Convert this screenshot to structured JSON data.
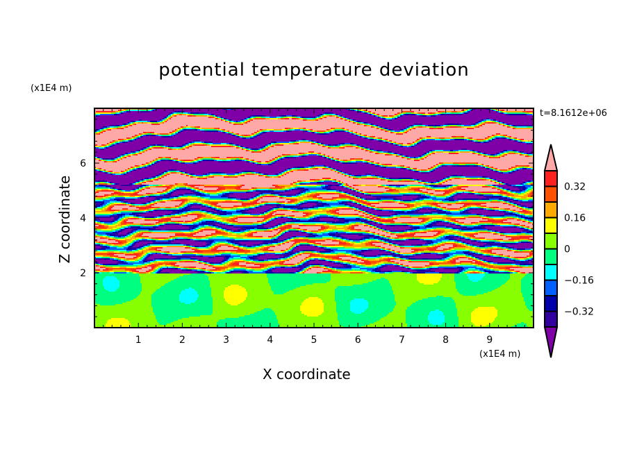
{
  "chart_data": {
    "type": "heatmap",
    "title": "potential temperature deviation",
    "xlabel": "X coordinate",
    "ylabel": "Z coordinate",
    "x_unit": "(x1E4 m)",
    "y_unit": "(x1E4 m)",
    "time_label": "t=8.1612e+06",
    "xlim": [
      0,
      10
    ],
    "ylim": [
      0,
      8
    ],
    "x_ticks": [
      1,
      2,
      3,
      4,
      5,
      6,
      7,
      8,
      9
    ],
    "y_ticks": [
      2,
      4,
      6
    ],
    "levels": [
      -0.4,
      -0.32,
      -0.24,
      -0.16,
      -0.08,
      0,
      0.08,
      0.16,
      0.24,
      0.32,
      0.4
    ],
    "colorbar_labels": [
      "0.32",
      "0.16",
      "0",
      "-0.16",
      "-0.32"
    ],
    "colorbar_label_values": [
      0.32,
      0.16,
      0,
      -0.16,
      -0.32
    ],
    "colors": [
      "#8000a8",
      "#3300a0",
      "#0000aa",
      "#0060ff",
      "#00ffff",
      "#00ff80",
      "#88ff00",
      "#ffff00",
      "#ffaa00",
      "#ff5000",
      "#ff2020",
      "#ffa8a8"
    ],
    "description_regions": {
      "stable_layer_z_below": 2,
      "banded_layer_z_above": 5.5
    }
  }
}
